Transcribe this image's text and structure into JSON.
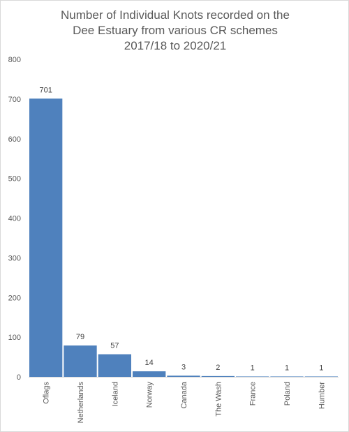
{
  "chart_data": {
    "type": "bar",
    "title_lines": [
      "Number of Individual Knots recorded on the",
      "Dee Estuary from various CR schemes",
      "2017/18 to 2020/21"
    ],
    "categories": [
      "Oflags",
      "Netherlands",
      "Iceland",
      "Norway",
      "Canada",
      "The Wash",
      "France",
      "Poland",
      "Humber"
    ],
    "values": [
      701,
      79,
      57,
      14,
      3,
      2,
      1,
      1,
      1
    ],
    "ylim": [
      0,
      800
    ],
    "yticks": [
      0,
      100,
      200,
      300,
      400,
      500,
      600,
      700,
      800
    ],
    "grid": false,
    "legend": "none",
    "bar_color": "#4f81bd",
    "xlabel": "",
    "ylabel": ""
  }
}
